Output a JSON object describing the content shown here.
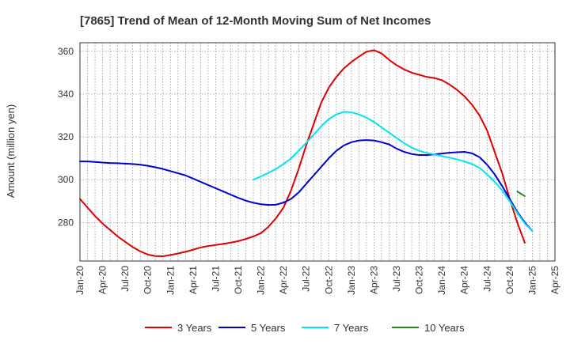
{
  "chart_data": {
    "type": "line",
    "title": "[7865]  Trend of Mean of 12-Month Moving Sum of Net Incomes",
    "ylabel": "Amount (million yen)",
    "xlabel": "",
    "ylim": [
      262,
      364
    ],
    "yticks": [
      280,
      300,
      320,
      340,
      360
    ],
    "xticks": [
      "Jan-20",
      "Apr-20",
      "Jul-20",
      "Oct-20",
      "Jan-21",
      "Apr-21",
      "Jul-21",
      "Oct-21",
      "Jan-22",
      "Apr-22",
      "Jul-22",
      "Oct-22",
      "Jan-23",
      "Apr-23",
      "Jul-23",
      "Oct-23",
      "Jan-24",
      "Apr-24",
      "Jul-24",
      "Oct-24",
      "Jan-25",
      "Apr-25"
    ],
    "grid": true,
    "legend_position": "bottom",
    "series": [
      {
        "name": "3 Years",
        "color": "#e00000",
        "points": [
          [
            "Jan-20",
            291
          ],
          [
            "Feb-20",
            287
          ],
          [
            "Mar-20",
            283
          ],
          [
            "Apr-20",
            279.5
          ],
          [
            "May-20",
            276.5
          ],
          [
            "Jun-20",
            273.5
          ],
          [
            "Jul-20",
            271
          ],
          [
            "Aug-20",
            268.5
          ],
          [
            "Sep-20",
            266.5
          ],
          [
            "Oct-20",
            265
          ],
          [
            "Nov-20",
            264.3
          ],
          [
            "Dec-20",
            264.2
          ],
          [
            "Jan-21",
            264.8
          ],
          [
            "Feb-21",
            265.5
          ],
          [
            "Mar-21",
            266.3
          ],
          [
            "Apr-21",
            267.3
          ],
          [
            "May-21",
            268.3
          ],
          [
            "Jun-21",
            269
          ],
          [
            "Jul-21",
            269.5
          ],
          [
            "Aug-21",
            270
          ],
          [
            "Sep-21",
            270.6
          ],
          [
            "Oct-21",
            271.3
          ],
          [
            "Nov-21",
            272.3
          ],
          [
            "Dec-21",
            273.5
          ],
          [
            "Jan-22",
            275
          ],
          [
            "Feb-22",
            278
          ],
          [
            "Mar-22",
            282
          ],
          [
            "Apr-22",
            287
          ],
          [
            "May-22",
            295
          ],
          [
            "Jun-22",
            305
          ],
          [
            "Jul-22",
            316
          ],
          [
            "Aug-22",
            326
          ],
          [
            "Sep-22",
            336
          ],
          [
            "Oct-22",
            343
          ],
          [
            "Nov-22",
            348
          ],
          [
            "Dec-22",
            352
          ],
          [
            "Jan-23",
            355
          ],
          [
            "Feb-23",
            357.5
          ],
          [
            "Mar-23",
            359.8
          ],
          [
            "Apr-23",
            360.5
          ],
          [
            "May-23",
            359
          ],
          [
            "Jun-23",
            356
          ],
          [
            "Jul-23",
            353.5
          ],
          [
            "Aug-23",
            351.5
          ],
          [
            "Sep-23",
            350
          ],
          [
            "Oct-23",
            349
          ],
          [
            "Nov-23",
            348
          ],
          [
            "Dec-23",
            347.5
          ],
          [
            "Jan-24",
            346.5
          ],
          [
            "Feb-24",
            344.5
          ],
          [
            "Mar-24",
            342
          ],
          [
            "Apr-24",
            339
          ],
          [
            "May-24",
            335
          ],
          [
            "Jun-24",
            330
          ],
          [
            "Jul-24",
            323
          ],
          [
            "Aug-24",
            313
          ],
          [
            "Sep-24",
            303
          ],
          [
            "Oct-24",
            291
          ],
          [
            "Nov-24",
            280
          ],
          [
            "Dec-24",
            270.5
          ]
        ]
      },
      {
        "name": "5 Years",
        "color": "#0000cc",
        "points": [
          [
            "Jan-20",
            308.5
          ],
          [
            "Feb-20",
            308.5
          ],
          [
            "Mar-20",
            308.3
          ],
          [
            "Apr-20",
            308
          ],
          [
            "May-20",
            307.8
          ],
          [
            "Jun-20",
            307.7
          ],
          [
            "Jul-20",
            307.5
          ],
          [
            "Aug-20",
            307.3
          ],
          [
            "Sep-20",
            307
          ],
          [
            "Oct-20",
            306.5
          ],
          [
            "Nov-20",
            305.8
          ],
          [
            "Dec-20",
            305
          ],
          [
            "Jan-21",
            304
          ],
          [
            "Feb-21",
            303
          ],
          [
            "Mar-21",
            302
          ],
          [
            "Apr-21",
            300.5
          ],
          [
            "May-21",
            299
          ],
          [
            "Jun-21",
            297.5
          ],
          [
            "Jul-21",
            296
          ],
          [
            "Aug-21",
            294.5
          ],
          [
            "Sep-21",
            293
          ],
          [
            "Oct-21",
            291.5
          ],
          [
            "Nov-21",
            290.2
          ],
          [
            "Dec-21",
            289.2
          ],
          [
            "Jan-22",
            288.5
          ],
          [
            "Feb-22",
            288.2
          ],
          [
            "Mar-22",
            288.3
          ],
          [
            "Apr-22",
            289.3
          ],
          [
            "May-22",
            291
          ],
          [
            "Jun-22",
            294
          ],
          [
            "Jul-22",
            298
          ],
          [
            "Aug-22",
            302
          ],
          [
            "Sep-22",
            306
          ],
          [
            "Oct-22",
            310
          ],
          [
            "Nov-22",
            313.5
          ],
          [
            "Dec-22",
            316
          ],
          [
            "Jan-23",
            317.5
          ],
          [
            "Feb-23",
            318.3
          ],
          [
            "Mar-23",
            318.5
          ],
          [
            "Apr-23",
            318.3
          ],
          [
            "May-23",
            317.5
          ],
          [
            "Jun-23",
            316.5
          ],
          [
            "Jul-23",
            314.5
          ],
          [
            "Aug-23",
            313
          ],
          [
            "Sep-23",
            312
          ],
          [
            "Oct-23",
            311.5
          ],
          [
            "Nov-23",
            311.5
          ],
          [
            "Dec-23",
            311.8
          ],
          [
            "Jan-24",
            312.2
          ],
          [
            "Feb-24",
            312.6
          ],
          [
            "Mar-24",
            312.8
          ],
          [
            "Apr-24",
            313
          ],
          [
            "May-24",
            312.3
          ],
          [
            "Jun-24",
            310.5
          ],
          [
            "Jul-24",
            307
          ],
          [
            "Aug-24",
            302.5
          ],
          [
            "Sep-24",
            297
          ],
          [
            "Oct-24",
            291
          ],
          [
            "Nov-24",
            285
          ],
          [
            "Dec-24",
            280
          ],
          [
            "Jan-25",
            276
          ]
        ]
      },
      {
        "name": "7 Years",
        "color": "#00e5ee",
        "points": [
          [
            "Dec-21",
            300
          ],
          [
            "Jan-22",
            301.5
          ],
          [
            "Feb-22",
            303.2
          ],
          [
            "Mar-22",
            305
          ],
          [
            "Apr-22",
            307.3
          ],
          [
            "May-22",
            310
          ],
          [
            "Jun-22",
            313.5
          ],
          [
            "Jul-22",
            317.2
          ],
          [
            "Aug-22",
            321
          ],
          [
            "Sep-22",
            325
          ],
          [
            "Oct-22",
            328.3
          ],
          [
            "Nov-22",
            330.5
          ],
          [
            "Dec-22",
            331.7
          ],
          [
            "Jan-23",
            331.5
          ],
          [
            "Feb-23",
            330.5
          ],
          [
            "Mar-23",
            329
          ],
          [
            "Apr-23",
            327
          ],
          [
            "May-23",
            324.5
          ],
          [
            "Jun-23",
            322
          ],
          [
            "Jul-23",
            319.5
          ],
          [
            "Aug-23",
            317
          ],
          [
            "Sep-23",
            315
          ],
          [
            "Oct-23",
            313.5
          ],
          [
            "Nov-23",
            312.5
          ],
          [
            "Dec-23",
            311.8
          ],
          [
            "Jan-24",
            311
          ],
          [
            "Feb-24",
            310.3
          ],
          [
            "Mar-24",
            309.5
          ],
          [
            "Apr-24",
            308.5
          ],
          [
            "May-24",
            307.3
          ],
          [
            "Jun-24",
            305.5
          ],
          [
            "Jul-24",
            302.5
          ],
          [
            "Aug-24",
            299
          ],
          [
            "Sep-24",
            295
          ],
          [
            "Oct-24",
            290
          ],
          [
            "Nov-24",
            284.5
          ],
          [
            "Dec-24",
            279.5
          ],
          [
            "Jan-25",
            276
          ]
        ]
      },
      {
        "name": "10 Years",
        "color": "#228b22",
        "points": [
          [
            "Nov-24",
            294.5
          ],
          [
            "Dec-24",
            292.3
          ]
        ]
      }
    ]
  }
}
